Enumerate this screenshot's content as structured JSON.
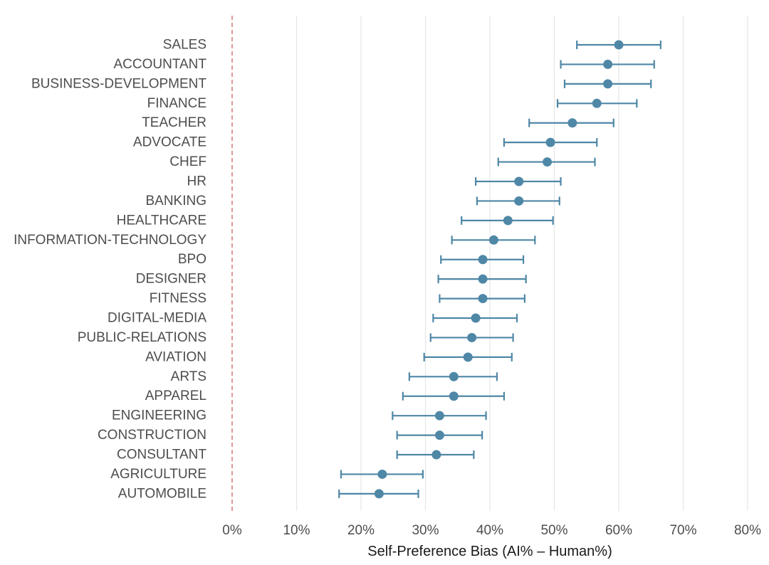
{
  "chart_data": {
    "type": "dot-errorbar",
    "xlabel": "Self-Preference Bias (AI% – Human%)",
    "ylabel": "",
    "xlim": [
      0,
      80
    ],
    "xticks": [
      0,
      10,
      20,
      30,
      40,
      50,
      60,
      70,
      80
    ],
    "xtick_labels": [
      "0%",
      "10%",
      "20%",
      "30%",
      "40%",
      "50%",
      "60%",
      "70%",
      "80%"
    ],
    "grid": "vertical",
    "reference_line": {
      "x": 0,
      "style": "dashed",
      "color": "#d98080"
    },
    "marker_color": "#4f87a6",
    "categories": [
      "SALES",
      "ACCOUNTANT",
      "BUSINESS-DEVELOPMENT",
      "FINANCE",
      "TEACHER",
      "ADVOCATE",
      "CHEF",
      "HR",
      "BANKING",
      "HEALTHCARE",
      "INFORMATION-TECHNOLOGY",
      "BPO",
      "DESIGNER",
      "FITNESS",
      "DIGITAL-MEDIA",
      "PUBLIC-RELATIONS",
      "AVIATION",
      "ARTS",
      "APPAREL",
      "ENGINEERING",
      "CONSTRUCTION",
      "CONSULTANT",
      "AGRICULTURE",
      "AUTOMOBILE"
    ],
    "values": [
      60.0,
      58.3,
      58.3,
      56.6,
      52.8,
      49.4,
      48.9,
      44.5,
      44.5,
      42.8,
      40.6,
      38.9,
      38.9,
      38.9,
      37.8,
      37.2,
      36.6,
      34.4,
      34.4,
      32.2,
      32.2,
      31.7,
      23.3,
      22.8
    ],
    "lower": [
      53.5,
      51.0,
      51.6,
      50.5,
      46.1,
      42.2,
      41.3,
      37.8,
      38.0,
      35.6,
      34.1,
      32.4,
      32.0,
      32.2,
      31.2,
      30.8,
      29.8,
      27.5,
      26.5,
      24.9,
      25.6,
      25.6,
      16.9,
      16.6
    ],
    "upper": [
      66.5,
      65.5,
      65.0,
      62.8,
      59.2,
      56.6,
      56.3,
      51.0,
      50.8,
      49.8,
      47.0,
      45.2,
      45.6,
      45.4,
      44.2,
      43.6,
      43.4,
      41.1,
      42.2,
      39.4,
      38.8,
      37.5,
      29.6,
      28.9
    ]
  }
}
